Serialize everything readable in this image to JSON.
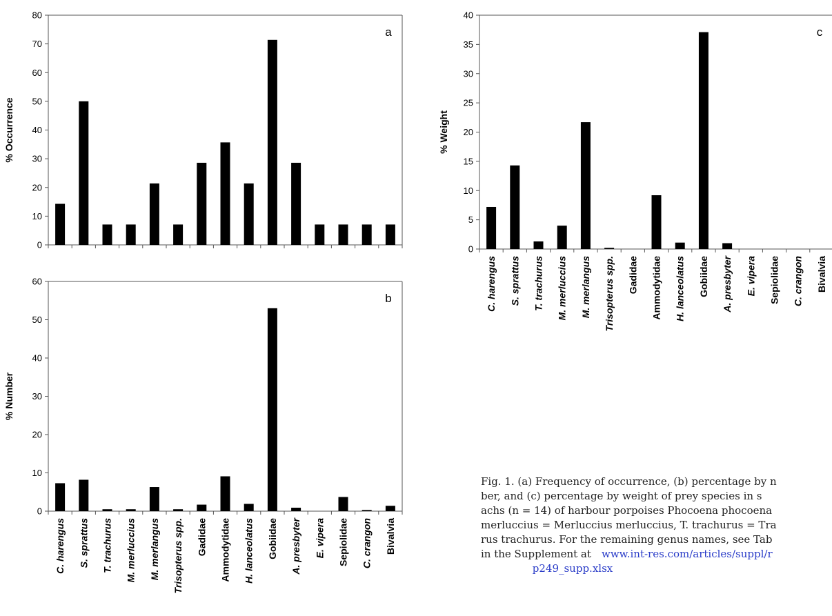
{
  "charts": [
    {
      "type": "bar",
      "panel": "a",
      "ylabel": "% Occurrence",
      "color": "#000000",
      "categories": [
        null,
        null,
        null,
        null,
        null,
        null,
        null,
        null,
        null,
        null,
        null,
        null,
        null,
        null,
        null
      ],
      "values": [
        14.3,
        50,
        7.1,
        7.1,
        21.4,
        7.1,
        28.6,
        35.7,
        21.4,
        71.4,
        28.6,
        7.1,
        7.1,
        7.1,
        7.1
      ],
      "ylim": [
        0,
        80
      ],
      "yticks": [
        0,
        10,
        20,
        30,
        40,
        50,
        60,
        70,
        80
      ]
    },
    {
      "type": "bar",
      "panel": "b",
      "ylabel": "% Number",
      "color": "#000000",
      "categories": [
        "C. harengus",
        "S. sprattus",
        "T. trachurus",
        "M. merluccius",
        "M. merlangus",
        "Trisopterus spp.",
        "Gadidae",
        "Ammodytidae",
        "H. lanceolatus",
        "Gobiidae",
        "A. presbyter",
        "E. vipera",
        "Sepiolidae",
        "C. crangon",
        "Bivalvia"
      ],
      "values": [
        7.3,
        8.2,
        0.5,
        0.5,
        6.3,
        0.5,
        1.7,
        9.1,
        1.9,
        53.0,
        0.9,
        0,
        3.7,
        0.3,
        1.4
      ],
      "ylim": [
        0,
        60
      ],
      "yticks": [
        0,
        10,
        20,
        30,
        40,
        50,
        60
      ]
    },
    {
      "type": "bar",
      "panel": "c",
      "ylabel": "% Weight",
      "color": "#000000",
      "categories": [
        "C. harengus",
        "S. sprattus",
        "T. trachurus",
        "M. merluccius",
        "M. merlangus",
        "Trisopterus spp.",
        "Gadidae",
        "Ammodytidae",
        "H. lanceolatus",
        "Gobiidae",
        "A. presbyter",
        "E. vipera",
        "Sepiolidae",
        "C. crangon",
        "Bivalvia"
      ],
      "values": [
        7.2,
        14.3,
        1.3,
        4.0,
        21.7,
        0.2,
        0,
        9.2,
        1.1,
        37.1,
        1.0,
        0,
        0,
        0,
        0
      ],
      "ylim": [
        0,
        40
      ],
      "yticks": [
        0,
        5,
        10,
        15,
        20,
        25,
        30,
        35,
        40
      ]
    }
  ],
  "caption": {
    "lines": [
      "Fig. 1. (a) Frequency of occurrence, (b) percentage by n",
      "ber, and (c) percentage by weight of prey species in s",
      "achs (n = 14) of harbour porpoises Phocoena phocoena",
      "merluccius = Merluccius merluccius, T. trachurus = Tra",
      "rus trachurus. For the remaining genus names, see Tab",
      "in the Supplement at"
    ],
    "link": "www.int-res.com/articles/suppl/r",
    "link_end": "p249_supp.xlsx"
  }
}
